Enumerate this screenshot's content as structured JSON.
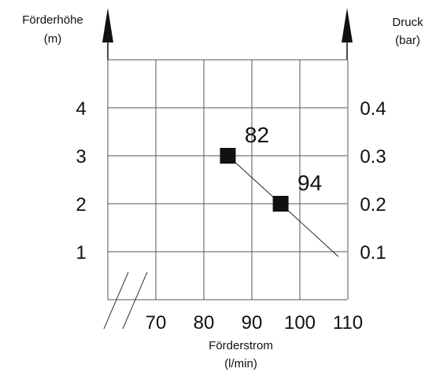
{
  "chart_data": {
    "type": "line",
    "left_axis": {
      "title_line1": "Förderhöhe",
      "title_line2": "(m)",
      "ticks": [
        1,
        2,
        3,
        4
      ]
    },
    "right_axis": {
      "title_line1": "Druck",
      "title_line2": "(bar)",
      "ticks": [
        "0.1",
        "0.2",
        "0.3",
        "0.4"
      ]
    },
    "x_axis": {
      "title_line1": "Förderstrom",
      "title_line2": "(l/min)",
      "ticks": [
        70,
        80,
        90,
        100,
        110
      ]
    },
    "x_range": [
      60,
      110
    ],
    "y_range": [
      0,
      5
    ],
    "grid": true,
    "series": [
      {
        "x": [
          85,
          96,
          108
        ],
        "y": [
          3.0,
          2.0,
          0.9
        ],
        "markers": [
          {
            "x": 85,
            "y": 3.0,
            "label": "82"
          },
          {
            "x": 96,
            "y": 2.0,
            "label": "94"
          }
        ]
      }
    ]
  }
}
